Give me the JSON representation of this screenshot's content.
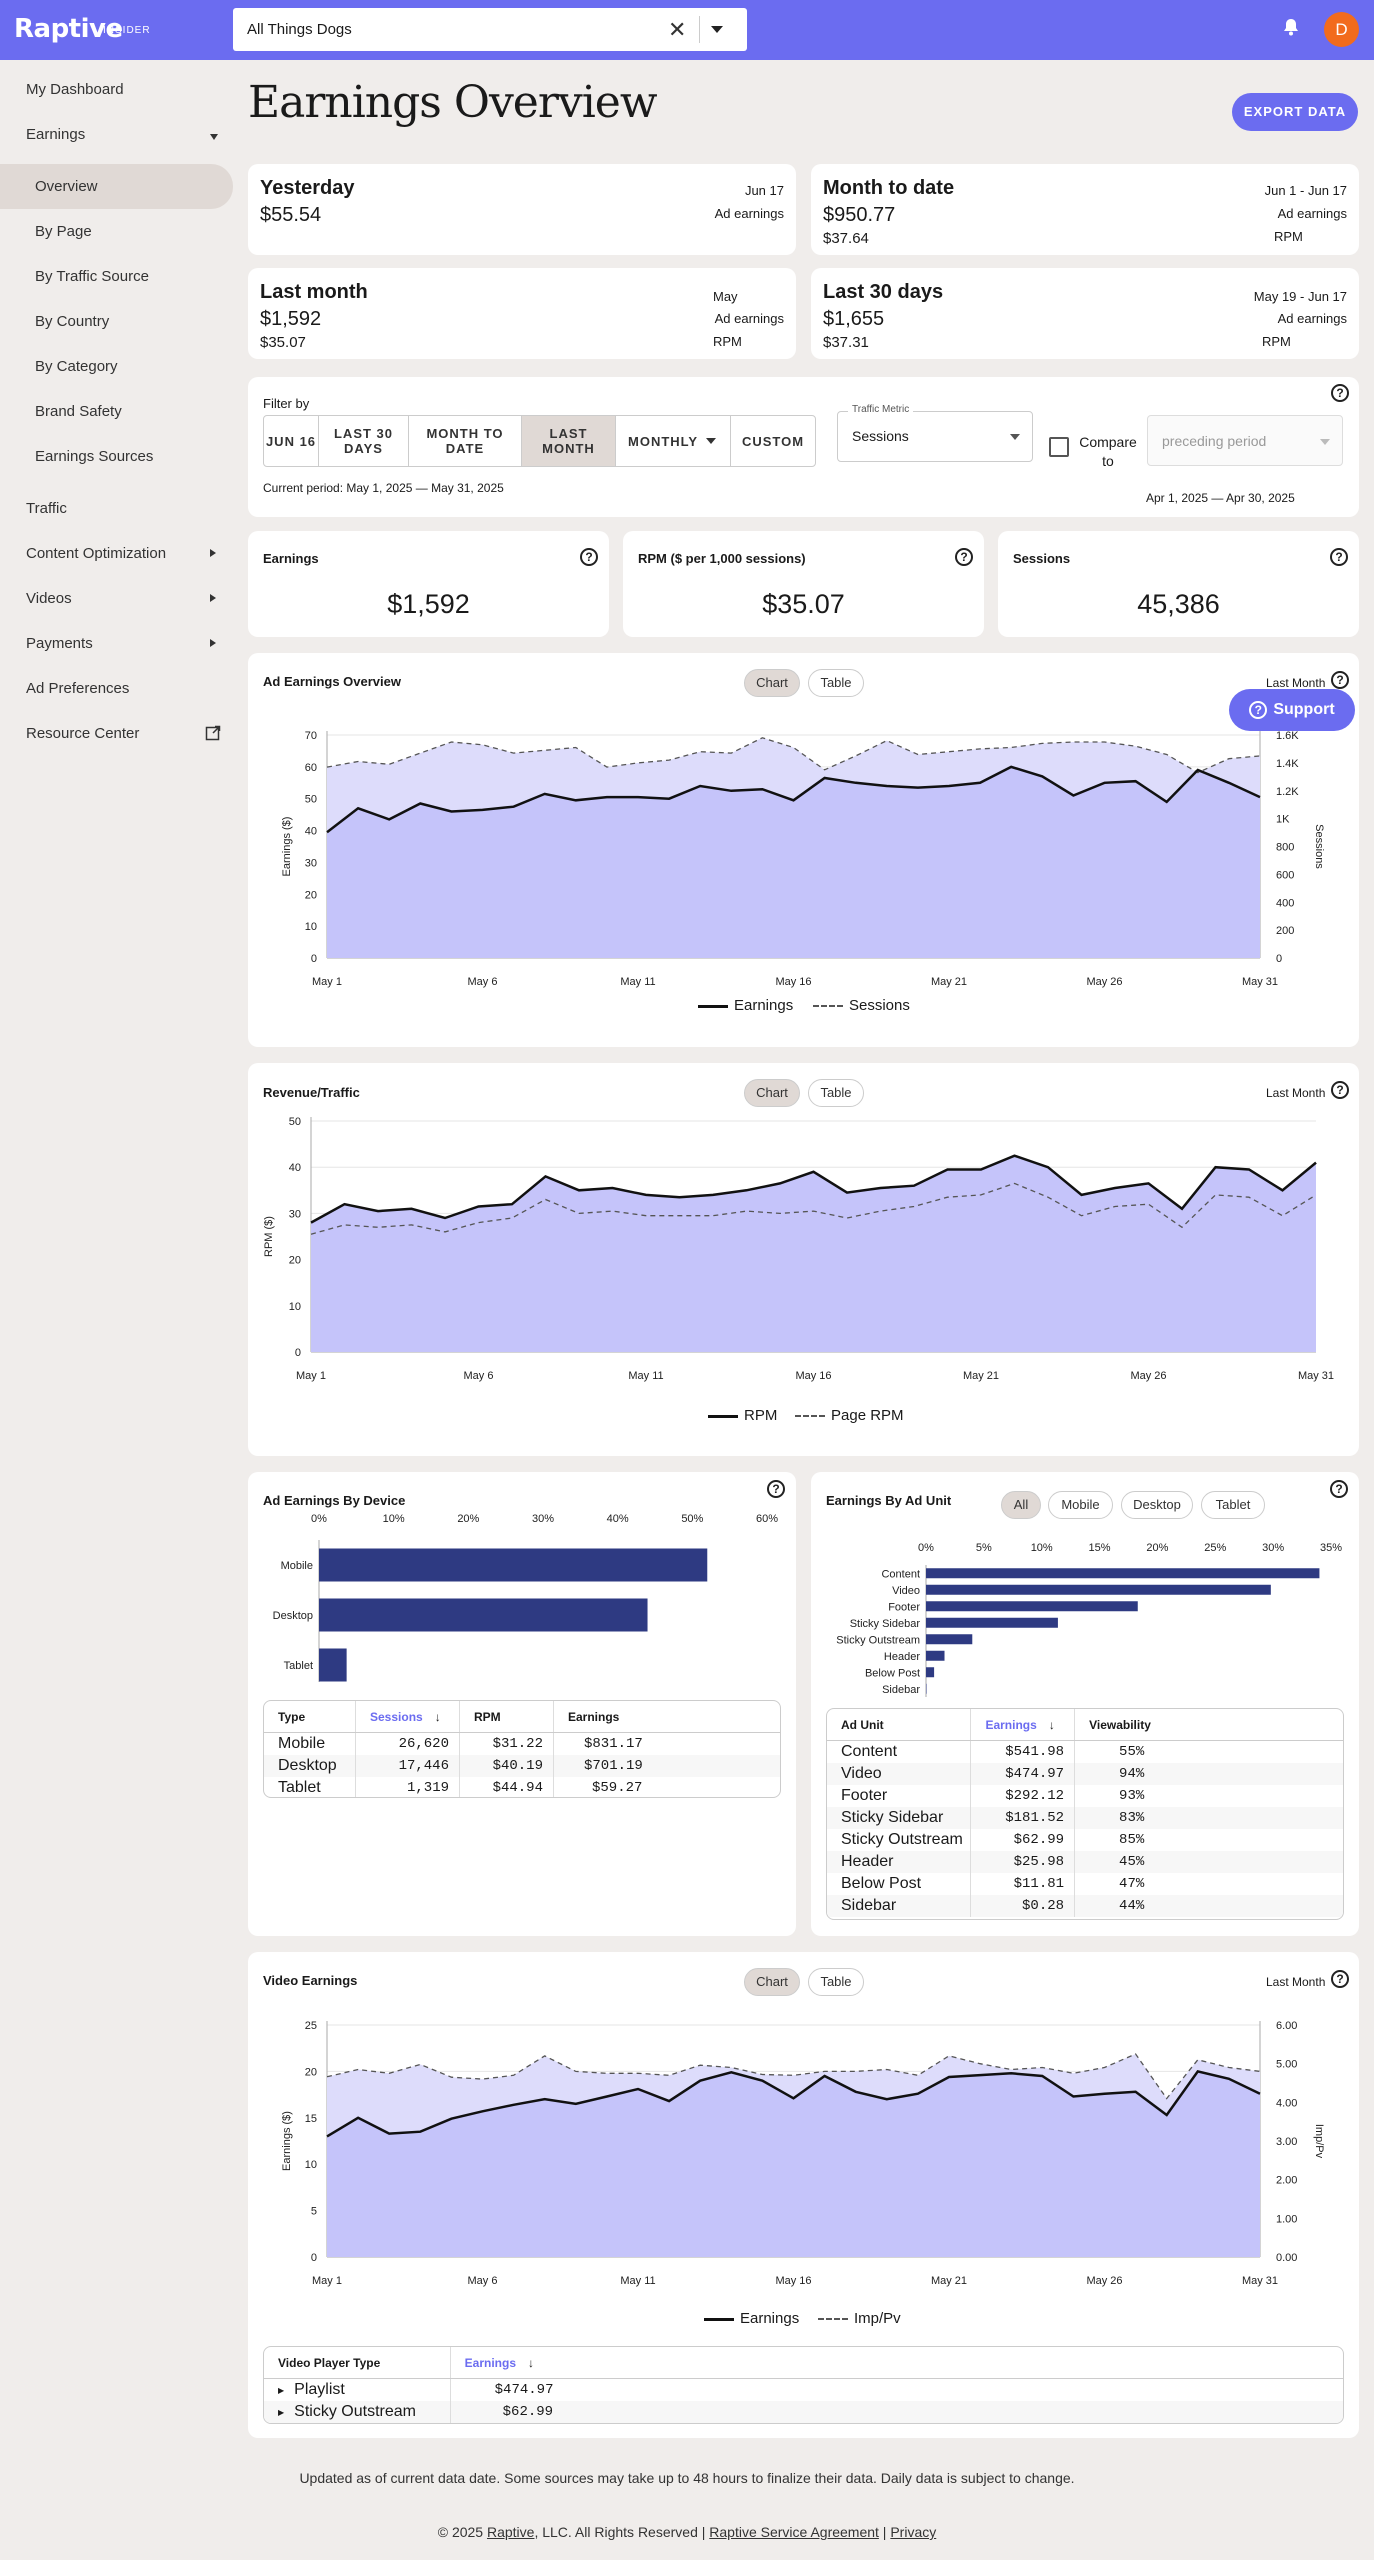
{
  "topbar": {
    "logo": "Raptive",
    "logo_sub": "INSIDER",
    "site": "All Things Dogs",
    "avatar": "D"
  },
  "sidebar": {
    "items": [
      {
        "label": "My Dashboard"
      },
      {
        "label": "Earnings"
      },
      {
        "label": "Overview"
      },
      {
        "label": "By Page"
      },
      {
        "label": "By Traffic Source"
      },
      {
        "label": "By Country"
      },
      {
        "label": "By Category"
      },
      {
        "label": "Brand Safety"
      },
      {
        "label": "Earnings Sources"
      },
      {
        "label": "Traffic"
      },
      {
        "label": "Content Optimization"
      },
      {
        "label": "Videos"
      },
      {
        "label": "Payments"
      },
      {
        "label": "Ad Preferences"
      },
      {
        "label": "Resource Center"
      }
    ]
  },
  "main": {
    "title": "Earnings Overview",
    "export_label": "EXPORT DATA",
    "stats": {
      "yesterday": {
        "title": "Yesterday",
        "value": "$55.54",
        "date": "Jun 17",
        "label": "Ad earnings"
      },
      "mtd": {
        "title": "Month to date",
        "value": "$950.77",
        "value2": "$37.64",
        "date": "Jun 1 - Jun 17",
        "label": "Ad earnings",
        "label2": "RPM"
      },
      "last_month": {
        "title": "Last month",
        "value": "$1,592",
        "value2": "$35.07",
        "date": "May",
        "label": "Ad earnings",
        "label2": "RPM"
      },
      "last30": {
        "title": "Last 30 days",
        "value": "$1,655",
        "value2": "$37.31",
        "date": "May 19 - Jun 17",
        "label": "Ad earnings",
        "label2": "RPM"
      }
    },
    "filter": {
      "label": "Filter by",
      "segments": [
        "JUN 16",
        "LAST 30 DAYS",
        "MONTH TO DATE",
        "LAST MONTH",
        "MONTHLY",
        "CUSTOM"
      ],
      "current_period": "Current period: May 1, 2025 — May 31, 2025",
      "metric_label": "Traffic Metric",
      "metric_value": "Sessions",
      "compare_label": "Compare to",
      "compare_placeholder": "preceding period",
      "compare_period": "Apr 1, 2025 — Apr 30, 2025"
    },
    "kpis": {
      "earnings": {
        "label": "Earnings",
        "value": "$1,592"
      },
      "rpm": {
        "label": "RPM ($ per 1,000 sessions)",
        "value": "$35.07"
      },
      "sessions": {
        "label": "Sessions",
        "value": "45,386"
      }
    },
    "chart_tab_labels": {
      "chart": "Chart",
      "table": "Table",
      "last_month": "Last Month"
    },
    "support_label": "Support",
    "device": {
      "title": "Ad Earnings By Device",
      "headers": [
        "Type",
        "Sessions",
        "RPM",
        "Earnings"
      ],
      "rows": [
        {
          "type": "Mobile",
          "sessions": "26,620",
          "rpm": "$31.22",
          "earnings": "$831.17"
        },
        {
          "type": "Desktop",
          "sessions": "17,446",
          "rpm": "$40.19",
          "earnings": "$701.19"
        },
        {
          "type": "Tablet",
          "sessions": "1,319",
          "rpm": "$44.94",
          "earnings": "$59.27"
        }
      ]
    },
    "adunit": {
      "title": "Earnings By Ad Unit",
      "filters": [
        "All",
        "Mobile",
        "Desktop",
        "Tablet"
      ],
      "headers": [
        "Ad Unit",
        "Earnings",
        "Viewability"
      ],
      "rows": [
        {
          "unit": "Content",
          "earnings": "$541.98",
          "view": "55%"
        },
        {
          "unit": "Video",
          "earnings": "$474.97",
          "view": "94%"
        },
        {
          "unit": "Footer",
          "earnings": "$292.12",
          "view": "93%"
        },
        {
          "unit": "Sticky Sidebar",
          "earnings": "$181.52",
          "view": "83%"
        },
        {
          "unit": "Sticky Outstream",
          "earnings": "$62.99",
          "view": "85%"
        },
        {
          "unit": "Header",
          "earnings": "$25.98",
          "view": "45%"
        },
        {
          "unit": "Below Post",
          "earnings": "$11.81",
          "view": "47%"
        },
        {
          "unit": "Sidebar",
          "earnings": "$0.28",
          "view": "44%"
        }
      ]
    },
    "video_table": {
      "headers": [
        "Video Player Type",
        "Earnings"
      ],
      "rows": [
        {
          "type": "Playlist",
          "earnings": "$474.97"
        },
        {
          "type": "Sticky Outstream",
          "earnings": "$62.99"
        }
      ]
    },
    "footnote": "Updated as of current data date. Some sources may take up to 48 hours to finalize their data. Daily data is subject to change.",
    "copyright": {
      "pre": "© 2025 ",
      "brand": "Raptive",
      "mid": ", LLC. All Rights Reserved | ",
      "agreement": "Raptive Service Agreement",
      "sep": " | ",
      "privacy": "Privacy"
    }
  },
  "colors": {
    "accent": "#6b6cf0",
    "fill": "#c5c4fa",
    "fill2": "#dddcfb",
    "bar": "#2e3a82"
  },
  "chart_data": [
    {
      "type": "area",
      "title": "Ad Earnings Overview",
      "x_ticks": [
        "May 1",
        "May 6",
        "May 11",
        "May 16",
        "May 21",
        "May 26",
        "May 31"
      ],
      "ylabel": "Earnings ($)",
      "y2label": "Sessions",
      "ylim": [
        0,
        70
      ],
      "y_ticks": [
        0,
        10,
        20,
        30,
        40,
        50,
        60,
        70
      ],
      "y2lim": [
        0,
        1600
      ],
      "y2_ticks": [
        "0",
        "200",
        "400",
        "600",
        "800",
        "1K",
        "1.2K",
        "1.4K",
        "1.6K"
      ],
      "series": [
        {
          "name": "Earnings",
          "values": [
            39.5,
            47,
            43.5,
            48.5,
            46,
            46.5,
            47.5,
            51.5,
            49.5,
            50.5,
            50.5,
            50,
            54,
            52.5,
            53,
            49.5,
            56.5,
            55,
            54,
            53.5,
            54,
            55,
            60,
            57,
            51,
            55,
            55.5,
            49,
            59,
            55,
            50.5
          ]
        },
        {
          "name": "Sessions",
          "values": [
            1370,
            1410,
            1390,
            1470,
            1550,
            1530,
            1470,
            1490,
            1510,
            1370,
            1400,
            1420,
            1480,
            1470,
            1580,
            1510,
            1350,
            1450,
            1560,
            1460,
            1480,
            1500,
            1510,
            1540,
            1550,
            1550,
            1520,
            1460,
            1330,
            1430,
            1450
          ]
        }
      ]
    },
    {
      "type": "area",
      "title": "Revenue/Traffic",
      "x_ticks": [
        "May 1",
        "May 6",
        "May 11",
        "May 16",
        "May 21",
        "May 26",
        "May 31"
      ],
      "ylabel": "RPM ($)",
      "ylim": [
        0,
        50
      ],
      "y_ticks": [
        0,
        10,
        20,
        30,
        40,
        50
      ],
      "series": [
        {
          "name": "RPM",
          "values": [
            28,
            32,
            30.5,
            31,
            29,
            31.5,
            32,
            38,
            35,
            35.5,
            34,
            33.5,
            34,
            35,
            36.5,
            39,
            34.5,
            35.5,
            36,
            39.5,
            39.5,
            42.5,
            40,
            34,
            35.5,
            36.5,
            31,
            40,
            39.5,
            35,
            41
          ]
        },
        {
          "name": "Page RPM",
          "values": [
            25.5,
            27.5,
            27,
            27.5,
            26,
            28,
            29,
            33,
            30,
            30.5,
            29.5,
            29.5,
            29.5,
            30.5,
            30,
            30.5,
            29,
            30.5,
            31.5,
            33.5,
            34,
            36.5,
            33.5,
            29.5,
            31.5,
            32,
            27,
            34,
            33.5,
            29.5,
            34
          ]
        }
      ]
    },
    {
      "type": "bar",
      "title": "Ad Earnings By Device",
      "orientation": "horizontal",
      "categories": [
        "Mobile",
        "Desktop",
        "Tablet"
      ],
      "values": [
        52,
        44,
        3.7
      ],
      "x_ticks": [
        "0%",
        "10%",
        "20%",
        "30%",
        "40%",
        "50%",
        "60%"
      ],
      "xlim": [
        0,
        60
      ]
    },
    {
      "type": "bar",
      "title": "Earnings By Ad Unit",
      "orientation": "horizontal",
      "categories": [
        "Content",
        "Video",
        "Footer",
        "Sticky Sidebar",
        "Sticky Outstream",
        "Header",
        "Below Post",
        "Sidebar"
      ],
      "values": [
        34,
        29.8,
        18.3,
        11.4,
        4,
        1.6,
        0.7,
        0.02
      ],
      "x_ticks": [
        "0%",
        "5%",
        "10%",
        "15%",
        "20%",
        "25%",
        "30%",
        "35%"
      ],
      "xlim": [
        0,
        35
      ]
    },
    {
      "type": "area",
      "title": "Video Earnings",
      "x_ticks": [
        "May 1",
        "May 6",
        "May 11",
        "May 16",
        "May 21",
        "May 26",
        "May 31"
      ],
      "ylabel": "Earnings ($)",
      "y2label": "Imp/Pv",
      "ylim": [
        0,
        25
      ],
      "y_ticks": [
        0,
        5,
        10,
        15,
        20,
        25
      ],
      "y2lim": [
        0,
        6
      ],
      "y2_ticks": [
        "0.00",
        "1.00",
        "2.00",
        "3.00",
        "4.00",
        "5.00",
        "6.00"
      ],
      "series": [
        {
          "name": "Earnings",
          "values": [
            13,
            15,
            13.3,
            13.5,
            14.9,
            15.7,
            16.4,
            17,
            16.5,
            17.3,
            18.1,
            16.8,
            19,
            19.9,
            19,
            17.1,
            19.5,
            17.8,
            17,
            17.6,
            19.4,
            19.6,
            19.8,
            19.5,
            17.3,
            17.6,
            17.8,
            15.3,
            20,
            19.2,
            17.6
          ]
        },
        {
          "name": "Imp/Pv",
          "values": [
            4.66,
            4.85,
            4.75,
            4.98,
            4.65,
            4.6,
            4.7,
            5.2,
            4.8,
            4.75,
            4.75,
            4.7,
            4.96,
            4.9,
            4.72,
            4.7,
            4.8,
            4.8,
            4.85,
            4.7,
            5.2,
            5,
            4.85,
            4.9,
            4.75,
            4.9,
            5.25,
            4.1,
            5.1,
            4.9,
            4.8
          ]
        }
      ]
    }
  ]
}
